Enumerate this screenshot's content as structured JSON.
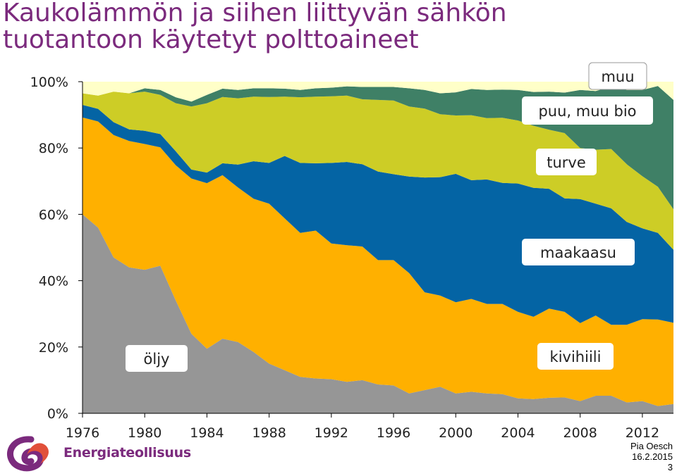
{
  "title": {
    "line1": "Kaukolämmön ja siihen liittyvän sähkön",
    "line2": "tuotantoon käytetyt polttoaineet"
  },
  "chart_data": {
    "type": "area",
    "stacked": true,
    "normalized_percent": true,
    "x": [
      1976,
      1977,
      1978,
      1979,
      1980,
      1981,
      1982,
      1983,
      1984,
      1985,
      1986,
      1987,
      1988,
      1989,
      1990,
      1991,
      1992,
      1993,
      1994,
      1995,
      1996,
      1997,
      1998,
      1999,
      2000,
      2001,
      2002,
      2003,
      2004,
      2005,
      2006,
      2007,
      2008,
      2009,
      2010,
      2011,
      2012,
      2013,
      2014
    ],
    "xlim": [
      1976,
      2014
    ],
    "x_ticks": [
      "1976",
      "1980",
      "1984",
      "1988",
      "1992",
      "1996",
      "2000",
      "2004",
      "2008",
      "2012"
    ],
    "ylim": [
      0,
      100
    ],
    "y_ticks": [
      "0%",
      "20%",
      "40%",
      "60%",
      "80%",
      "100%"
    ],
    "grid": false,
    "legend": "labels placed on the areas",
    "series": [
      {
        "name": "öljy",
        "color": "#969696",
        "values": [
          60,
          56,
          47,
          44,
          43.3,
          44.5,
          34,
          24,
          19.5,
          22.5,
          21.5,
          18.5,
          15,
          13,
          11,
          10.5,
          10.3,
          9.5,
          10,
          8.7,
          8.4,
          6,
          7,
          8,
          6,
          6.5,
          6,
          5.8,
          4.5,
          4.3,
          4.7,
          4.8,
          3.7,
          5.3,
          5.3,
          3.3,
          3.7,
          2.2,
          2.8
        ]
      },
      {
        "name": "kivihiili",
        "color": "#ffb000",
        "values": [
          29.2,
          32,
          36.9,
          38.1,
          37.9,
          35.7,
          40.8,
          46.8,
          49.9,
          49.3,
          46.6,
          46.2,
          48.2,
          45.8,
          43.4,
          44.6,
          40.9,
          41.2,
          40.3,
          37.5,
          37.8,
          36.3,
          29.5,
          27.5,
          27.5,
          28,
          27,
          27.2,
          26.1,
          24.8,
          26.9,
          25.8,
          23.5,
          24.2,
          21.4,
          23.4,
          24.7,
          26.1,
          24.5
        ]
      },
      {
        "name": "maakaasu",
        "color": "#0464a4",
        "values": [
          3.8,
          3.8,
          3.9,
          3.5,
          4,
          4,
          4.2,
          2.7,
          3.2,
          3.6,
          6.9,
          11.3,
          12.3,
          18.8,
          21.1,
          20.3,
          24.3,
          25.1,
          24.8,
          26.7,
          25.9,
          29.1,
          34.6,
          35.7,
          38.7,
          35.8,
          37.5,
          36.5,
          38.7,
          38.9,
          36.1,
          34.2,
          37.4,
          33.7,
          35.1,
          31,
          27.4,
          26.1,
          22
        ]
      },
      {
        "name": "turve",
        "color": "#cdcd26",
        "values": [
          3.5,
          4,
          9.2,
          10.9,
          11.8,
          11.8,
          14.5,
          19,
          20.9,
          20,
          20,
          19.5,
          19.9,
          17.9,
          19.8,
          20.1,
          20.1,
          20,
          19.6,
          21.6,
          22.2,
          21.1,
          20.8,
          19,
          17.6,
          19.6,
          18.5,
          19.6,
          19,
          18.7,
          17.8,
          19.7,
          15.4,
          16.3,
          17.9,
          17.4,
          15.7,
          13.9,
          12.2
        ]
      },
      {
        "name": "puu, muu bio",
        "color": "#3f8066",
        "values": [
          0,
          0,
          0,
          0,
          1,
          1.5,
          1.8,
          1.5,
          2.5,
          2.5,
          2.5,
          2.5,
          2.6,
          2.4,
          2.2,
          2.5,
          2.6,
          2.8,
          3.7,
          3.9,
          4.1,
          5.5,
          5.6,
          6.3,
          7,
          7.9,
          8.5,
          8.5,
          9.2,
          10.2,
          11.5,
          12.2,
          17.5,
          17.7,
          18.8,
          22.4,
          26,
          30.4,
          33
        ]
      },
      {
        "name": "muu",
        "color": "#ffffc8",
        "values": [
          3.5,
          4.2,
          3,
          3.5,
          2,
          2.5,
          4.7,
          6,
          4,
          2.1,
          2.5,
          2,
          2,
          2.1,
          2.5,
          2,
          1.8,
          1.4,
          1.6,
          1.6,
          1.6,
          2,
          2.5,
          3.5,
          3.2,
          2.2,
          2.5,
          2.4,
          2.5,
          3.1,
          3,
          3.3,
          2.5,
          2.8,
          1.5,
          2.5,
          2.5,
          1.3,
          5.5
        ]
      }
    ]
  },
  "area_labels": {
    "muu": "muu",
    "puu": "puu, muu bio",
    "turve": "turve",
    "maakaasu": "maakaasu",
    "kivihiili": "kivihiili",
    "oljy": "öljy"
  },
  "logo": {
    "text": "Energiateollisuus"
  },
  "footer": {
    "author": "Pia Oesch",
    "date": "16.2.2015",
    "page": "3"
  }
}
